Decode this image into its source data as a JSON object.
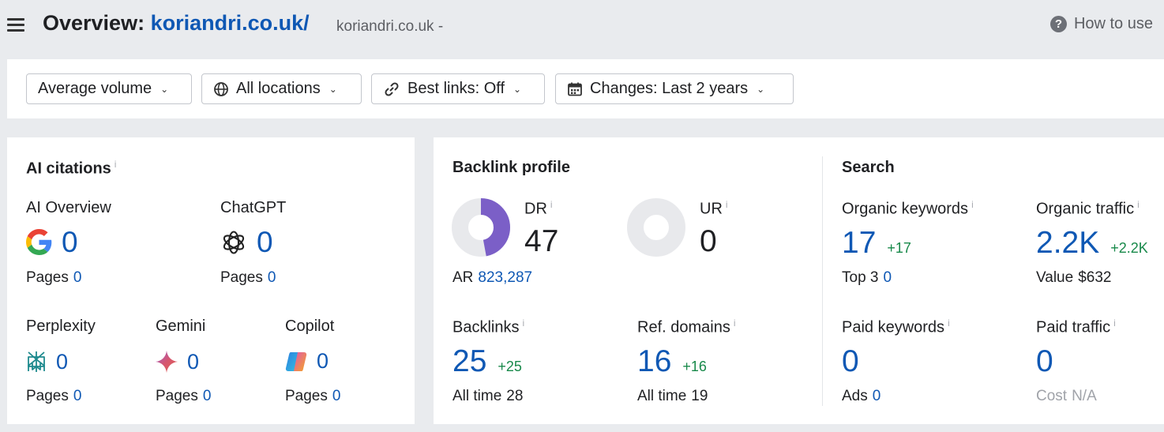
{
  "header": {
    "title_prefix": "Overview:",
    "domain_link": "koriandri.co.uk/",
    "subtitle": "koriandri.co.uk -",
    "help_label": "How to use",
    "help_icon_glyph": "?"
  },
  "filters": [
    {
      "label": "Average volume",
      "icon": "none"
    },
    {
      "label": "All locations",
      "icon": "globe-icon"
    },
    {
      "label": "Best links: Off",
      "icon": "link-icon"
    },
    {
      "label": "Changes: Last 2 years",
      "icon": "calendar-icon"
    }
  ],
  "ai_citations": {
    "title": "AI citations",
    "info": "i",
    "pages_label": "Pages",
    "ai_overview": {
      "label": "AI Overview",
      "value": "0",
      "pages": "0"
    },
    "chatgpt": {
      "label": "ChatGPT",
      "value": "0",
      "pages": "0"
    },
    "perplexity": {
      "label": "Perplexity",
      "value": "0",
      "pages": "0"
    },
    "gemini": {
      "label": "Gemini",
      "value": "0",
      "pages": "0"
    },
    "copilot": {
      "label": "Copilot",
      "value": "0",
      "pages": "0"
    }
  },
  "backlink_profile": {
    "title": "Backlink profile",
    "dr": {
      "label": "DR",
      "value": "47",
      "fraction": 0.47
    },
    "ur": {
      "label": "UR",
      "value": "0",
      "fraction": 0
    },
    "ar_label": "AR",
    "ar_value": "823,287",
    "backlinks": {
      "label": "Backlinks",
      "value": "25",
      "delta": "+25",
      "alltime_label": "All time",
      "alltime": "28"
    },
    "ref_domains": {
      "label": "Ref. domains",
      "value": "16",
      "delta": "+16",
      "alltime_label": "All time",
      "alltime": "19"
    }
  },
  "search": {
    "title": "Search",
    "organic_keywords": {
      "label": "Organic keywords",
      "value": "17",
      "delta": "+17",
      "sub_label": "Top 3",
      "sub_value": "0"
    },
    "organic_traffic": {
      "label": "Organic traffic",
      "value": "2.2K",
      "delta": "+2.2K",
      "sub_label": "Value",
      "sub_value": "$632"
    },
    "paid_keywords": {
      "label": "Paid keywords",
      "value": "0",
      "sub_label": "Ads",
      "sub_value": "0"
    },
    "paid_traffic": {
      "label": "Paid traffic",
      "value": "0",
      "sub_label": "Cost",
      "sub_value": "N/A"
    }
  },
  "colors": {
    "link_blue": "#0f58b4",
    "positive_green": "#18894a",
    "dr_purple": "#7b5fc7",
    "donut_grey": "#e8e9ec"
  }
}
